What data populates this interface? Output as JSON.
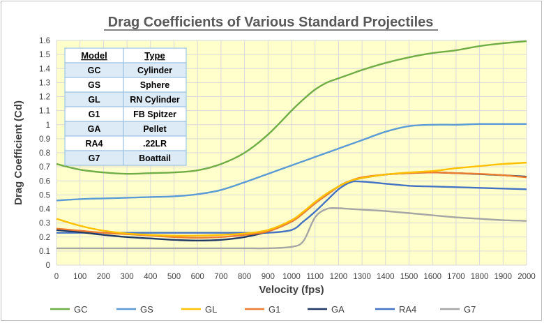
{
  "chart_data": {
    "type": "line",
    "title": "Drag Coefficients of Various Standard Projectiles",
    "xlabel": "Velocity (fps)",
    "ylabel": "Drag Coefficient (Cd)",
    "xlim": [
      0,
      2000
    ],
    "ylim": [
      0,
      1.6
    ],
    "x_ticks": [
      "0",
      "100",
      "200",
      "300",
      "400",
      "500",
      "600",
      "700",
      "800",
      "900",
      "1000",
      "1100",
      "1200",
      "1300",
      "1400",
      "1500",
      "1600",
      "1700",
      "1800",
      "1900",
      "2000"
    ],
    "y_ticks": [
      "0",
      "0.1",
      "0.2",
      "0.3",
      "0.4",
      "0.5",
      "0.6",
      "0.7",
      "0.8",
      "0.9",
      "1",
      "1.1",
      "1.2",
      "1.3",
      "1.4",
      "1.5",
      "1.6"
    ],
    "grid": true,
    "legend_position": "bottom",
    "x": [
      0,
      100,
      200,
      300,
      400,
      500,
      600,
      700,
      800,
      900,
      1000,
      1050,
      1100,
      1150,
      1200,
      1250,
      1300,
      1400,
      1500,
      1600,
      1700,
      1800,
      1900,
      2000
    ],
    "series": [
      {
        "name": "GC",
        "color": "#70ad47",
        "values": [
          0.72,
          0.68,
          0.66,
          0.65,
          0.655,
          0.66,
          0.675,
          0.72,
          0.8,
          0.93,
          1.1,
          1.18,
          1.25,
          1.3,
          1.33,
          1.36,
          1.39,
          1.44,
          1.48,
          1.51,
          1.53,
          1.56,
          1.58,
          1.595
        ]
      },
      {
        "name": "GS",
        "color": "#5b9bd5",
        "values": [
          0.46,
          0.47,
          0.475,
          0.48,
          0.485,
          0.49,
          0.505,
          0.535,
          0.59,
          0.65,
          0.71,
          0.74,
          0.77,
          0.8,
          0.83,
          0.86,
          0.89,
          0.95,
          0.99,
          1.0,
          1.0,
          1.005,
          1.005,
          1.005
        ]
      },
      {
        "name": "GL",
        "color": "#ffc000",
        "values": [
          0.33,
          0.28,
          0.245,
          0.225,
          0.215,
          0.21,
          0.21,
          0.215,
          0.225,
          0.25,
          0.32,
          0.38,
          0.45,
          0.51,
          0.56,
          0.6,
          0.62,
          0.645,
          0.66,
          0.67,
          0.69,
          0.705,
          0.72,
          0.73
        ]
      },
      {
        "name": "G1",
        "color": "#ed7d31",
        "values": [
          0.26,
          0.245,
          0.23,
          0.22,
          0.21,
          0.2,
          0.195,
          0.2,
          0.215,
          0.24,
          0.31,
          0.37,
          0.44,
          0.5,
          0.56,
          0.6,
          0.625,
          0.645,
          0.655,
          0.66,
          0.655,
          0.65,
          0.64,
          0.625
        ]
      },
      {
        "name": "GA",
        "color": "#203864",
        "values": [
          0.25,
          0.235,
          0.215,
          0.2,
          0.19,
          0.18,
          0.175,
          0.18,
          0.2,
          0.24,
          0.31,
          0.37,
          0.44,
          0.5,
          0.56,
          0.6,
          0.62,
          0.645,
          0.655,
          0.66,
          0.655,
          0.648,
          0.64,
          0.63
        ]
      },
      {
        "name": "RA4",
        "color": "#4472c4",
        "values": [
          0.23,
          0.23,
          0.23,
          0.23,
          0.23,
          0.23,
          0.23,
          0.23,
          0.23,
          0.23,
          0.25,
          0.31,
          0.38,
          0.46,
          0.54,
          0.59,
          0.595,
          0.58,
          0.565,
          0.56,
          0.555,
          0.55,
          0.545,
          0.54
        ]
      },
      {
        "name": "G7",
        "color": "#a5a5a5",
        "values": [
          0.12,
          0.12,
          0.12,
          0.12,
          0.12,
          0.12,
          0.12,
          0.12,
          0.12,
          0.12,
          0.13,
          0.17,
          0.34,
          0.4,
          0.405,
          0.4,
          0.395,
          0.385,
          0.37,
          0.355,
          0.34,
          0.33,
          0.32,
          0.315
        ]
      }
    ],
    "table": {
      "headers": [
        "Model",
        "Type"
      ],
      "rows": [
        [
          "GC",
          "Cylinder"
        ],
        [
          "GS",
          "Sphere"
        ],
        [
          "GL",
          "RN Cylinder"
        ],
        [
          "G1",
          "FB Spitzer"
        ],
        [
          "GA",
          "Pellet"
        ],
        [
          "RA4",
          ".22LR"
        ],
        [
          "G7",
          "Boattail"
        ]
      ]
    },
    "colors": {
      "plot_bg": "#ffffcc",
      "grid": "#d9d9d9",
      "table_row_alt": "#ddebf7",
      "table_border": "#9dc3e6"
    }
  }
}
